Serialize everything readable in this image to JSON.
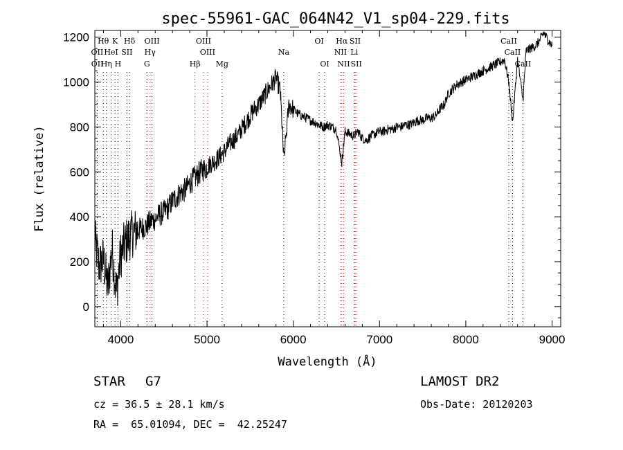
{
  "chart_data": {
    "type": "line",
    "title": "spec-55961-GAC_064N42_V1_sp04-229.fits",
    "xlabel": "Wavelength (Å)",
    "ylabel": "Flux (relative)",
    "xlim": [
      3700,
      9100
    ],
    "ylim": [
      -90,
      1230
    ],
    "xticks": [
      4000,
      5000,
      6000,
      7000,
      8000,
      9000
    ],
    "yticks": [
      0,
      200,
      400,
      600,
      800,
      1000,
      1200
    ],
    "grid": false,
    "series": [
      {
        "color": "#000000",
        "x": [
          3700,
          3750,
          3800,
          3850,
          3900,
          3950,
          4000,
          4050,
          4100,
          4150,
          4200,
          4250,
          4300,
          4350,
          4400,
          4450,
          4500,
          4550,
          4600,
          4650,
          4700,
          4750,
          4800,
          4850,
          4900,
          4950,
          5000,
          5050,
          5100,
          5150,
          5200,
          5250,
          5300,
          5350,
          5400,
          5450,
          5500,
          5550,
          5600,
          5650,
          5700,
          5750,
          5800,
          5850,
          5890,
          5950,
          6000,
          6050,
          6100,
          6150,
          6200,
          6250,
          6300,
          6350,
          6400,
          6450,
          6500,
          6563,
          6600,
          6650,
          6700,
          6750,
          6800,
          6850,
          6900,
          6950,
          7000,
          7050,
          7100,
          7150,
          7200,
          7250,
          7300,
          7350,
          7400,
          7450,
          7500,
          7550,
          7600,
          7650,
          7700,
          7750,
          7800,
          7850,
          7900,
          7950,
          8000,
          8050,
          8100,
          8150,
          8200,
          8250,
          8300,
          8350,
          8400,
          8450,
          8498,
          8542,
          8600,
          8662,
          8700,
          8750,
          8800,
          8850,
          8900,
          8950,
          9000
        ],
        "values": [
          300,
          180,
          210,
          80,
          260,
          60,
          230,
          280,
          310,
          330,
          340,
          350,
          360,
          380,
          390,
          410,
          420,
          440,
          470,
          490,
          510,
          520,
          550,
          570,
          590,
          610,
          620,
          640,
          650,
          670,
          690,
          720,
          740,
          760,
          790,
          820,
          850,
          880,
          900,
          930,
          960,
          990,
          1020,
          960,
          650,
          900,
          880,
          860,
          850,
          840,
          830,
          820,
          810,
          800,
          810,
          800,
          790,
          640,
          780,
          770,
          760,
          780,
          750,
          740,
          760,
          770,
          780,
          780,
          790,
          790,
          800,
          800,
          810,
          810,
          820,
          830,
          830,
          840,
          840,
          850,
          880,
          900,
          950,
          970,
          990,
          1000,
          1010,
          1020,
          1030,
          1040,
          1050,
          1060,
          1070,
          1080,
          1090,
          1100,
          1000,
          820,
          1100,
          920,
          1140,
          1150,
          1160,
          1180,
          1220,
          1190,
          1160
        ]
      }
    ],
    "emission_lines": [
      {
        "label": "Hθ",
        "x": 3798,
        "row": 0,
        "color": "#000000"
      },
      {
        "label": "K",
        "x": 3934,
        "row": 0,
        "color": "#000000"
      },
      {
        "label": "Hδ",
        "x": 4102,
        "row": 0,
        "color": "#000000"
      },
      {
        "label": "OIII",
        "x": 4363,
        "row": 0,
        "color": "#000000"
      },
      {
        "label": "OIII",
        "x": 4959,
        "row": 0,
        "color": "#ff0000"
      },
      {
        "label": "OI",
        "x": 6300,
        "row": 0,
        "color": "#000000"
      },
      {
        "label": "Hα",
        "x": 6563,
        "row": 0,
        "color": "#ff0000"
      },
      {
        "label": "SII",
        "x": 6717,
        "row": 0,
        "color": "#ff0000"
      },
      {
        "label": "CaII",
        "x": 8498,
        "row": 0,
        "color": "#000000"
      },
      {
        "label": "OII",
        "x": 3727,
        "row": 1,
        "color": "#000000"
      },
      {
        "label": "HeI",
        "x": 3889,
        "row": 1,
        "color": "#000000"
      },
      {
        "label": "SII",
        "x": 4072,
        "row": 1,
        "color": "#000000"
      },
      {
        "label": "Hγ",
        "x": 4340,
        "row": 1,
        "color": "#ff0000"
      },
      {
        "label": "OIII",
        "x": 5007,
        "row": 1,
        "color": "#ff0000"
      },
      {
        "label": "Na",
        "x": 5890,
        "row": 1,
        "color": "#000000"
      },
      {
        "label": "NII",
        "x": 6548,
        "row": 1,
        "color": "#ff0000"
      },
      {
        "label": "Li",
        "x": 6707,
        "row": 1,
        "color": "#000000"
      },
      {
        "label": "CaII",
        "x": 8542,
        "row": 1,
        "color": "#000000"
      },
      {
        "label": "OII",
        "x": 3729,
        "row": 2,
        "color": "#000000"
      },
      {
        "label": "Hη",
        "x": 3835,
        "row": 2,
        "color": "#000000"
      },
      {
        "label": "H",
        "x": 3968,
        "row": 2,
        "color": "#000000"
      },
      {
        "label": "G",
        "x": 4304,
        "row": 2,
        "color": "#000000"
      },
      {
        "label": "Hβ",
        "x": 4861,
        "row": 2,
        "color": "#ff0000"
      },
      {
        "label": "Mg",
        "x": 5175,
        "row": 2,
        "color": "#000000"
      },
      {
        "label": "OI",
        "x": 6364,
        "row": 2,
        "color": "#000000"
      },
      {
        "label": "NII",
        "x": 6584,
        "row": 2,
        "color": "#ff0000"
      },
      {
        "label": "SII",
        "x": 6731,
        "row": 2,
        "color": "#ff0000"
      },
      {
        "label": "CaII",
        "x": 8662,
        "row": 2,
        "color": "#000000"
      }
    ]
  },
  "info": {
    "object_class": "STAR",
    "subclass": "G7",
    "survey": "LAMOST DR2",
    "redshift": "cz = 36.5 ± 28.1 km/s",
    "obs_date": "Obs-Date: 20120203",
    "coords": "RA =  65.01094, DEC =  42.25247"
  }
}
